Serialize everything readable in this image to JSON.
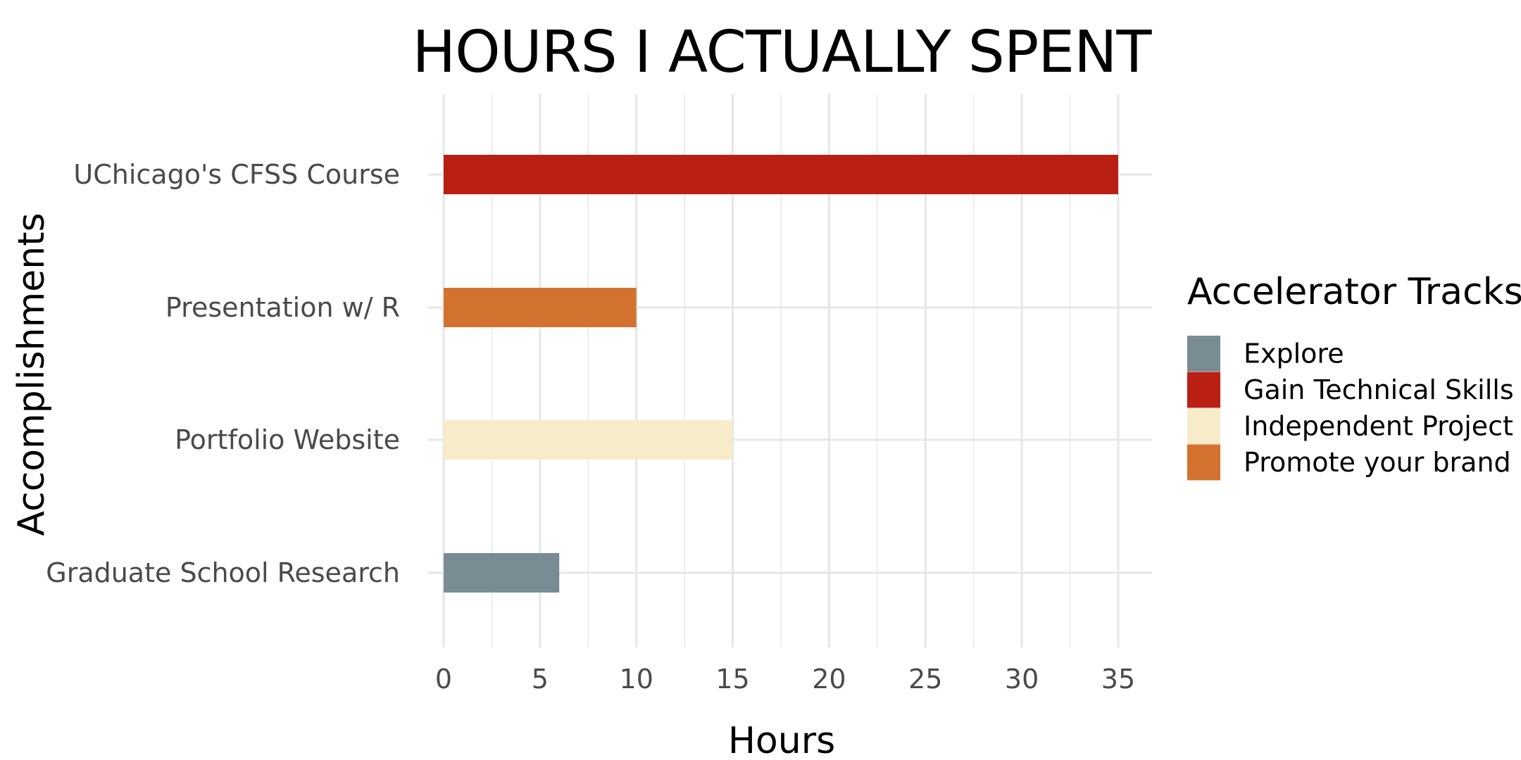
{
  "chart_data": {
    "type": "bar",
    "orientation": "horizontal",
    "title": "HOURS I ACTUALLY SPENT",
    "xlabel": "Hours",
    "ylabel": "Accomplishments",
    "xlim": [
      0,
      36.75
    ],
    "x_ticks": [
      0,
      5,
      10,
      15,
      20,
      25,
      30,
      35
    ],
    "categories": [
      "UChicago's CFSS Course",
      "Presentation w/ R",
      "Portfolio Website",
      "Graduate School Research"
    ],
    "values": [
      35,
      10,
      15,
      6
    ],
    "bar_tracks": [
      "Gain Technical Skills",
      "Promote your brand",
      "Independent Project",
      "Explore"
    ],
    "grid": true,
    "legend": {
      "title": "Accelerator Tracks",
      "placement": "right",
      "entries": [
        {
          "label": "Explore",
          "color": "#798c94"
        },
        {
          "label": "Gain Technical Skills",
          "color": "#b91f12"
        },
        {
          "label": "Independent Project",
          "color": "#f7ebca"
        },
        {
          "label": "Promote your brand",
          "color": "#d3722f"
        }
      ]
    }
  }
}
